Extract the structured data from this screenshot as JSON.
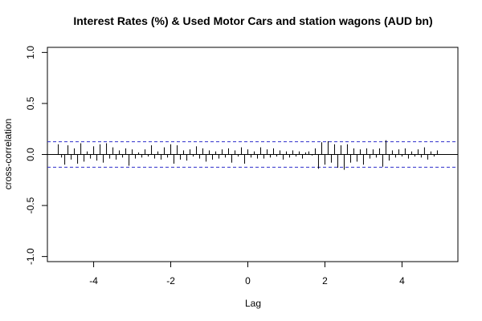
{
  "chart_data": {
    "type": "bar",
    "subtype": "cross-correlation",
    "title": "Interest Rates (%) & Used Motor Cars and station wagons (AUD bn)",
    "xlabel": "Lag",
    "ylabel": "cross-correlation",
    "xlim": [
      -5.2,
      5.45
    ],
    "ylim": [
      -1.05,
      1.05
    ],
    "x_ticks": [
      -4,
      -2,
      0,
      2,
      4
    ],
    "y_ticks": [
      -1.0,
      -0.5,
      0.0,
      0.5,
      1.0
    ],
    "x_tick_labels": [
      "-4",
      "-2",
      "0",
      "2",
      "4"
    ],
    "y_tick_labels": [
      "-1.0",
      "-0.5",
      "0.0",
      "0.5",
      "1.0"
    ],
    "confidence_limit": 0.125,
    "colors": {
      "bars": "#000000",
      "confidence_lines": "#2f2fcc",
      "zero_line": "#000000"
    },
    "lags": [
      -4.917,
      -4.833,
      -4.75,
      -4.667,
      -4.583,
      -4.5,
      -4.417,
      -4.333,
      -4.25,
      -4.167,
      -4.083,
      -4.0,
      -3.917,
      -3.833,
      -3.75,
      -3.667,
      -3.583,
      -3.5,
      -3.417,
      -3.333,
      -3.25,
      -3.167,
      -3.083,
      -3.0,
      -2.917,
      -2.833,
      -2.75,
      -2.667,
      -2.583,
      -2.5,
      -2.417,
      -2.333,
      -2.25,
      -2.167,
      -2.083,
      -2.0,
      -1.917,
      -1.833,
      -1.75,
      -1.667,
      -1.583,
      -1.5,
      -1.417,
      -1.333,
      -1.25,
      -1.167,
      -1.083,
      -1.0,
      -0.917,
      -0.833,
      -0.75,
      -0.667,
      -0.583,
      -0.5,
      -0.417,
      -0.333,
      -0.25,
      -0.167,
      -0.083,
      0.0,
      0.083,
      0.167,
      0.25,
      0.333,
      0.417,
      0.5,
      0.583,
      0.667,
      0.75,
      0.833,
      0.917,
      1.0,
      1.083,
      1.167,
      1.25,
      1.333,
      1.417,
      1.5,
      1.583,
      1.667,
      1.75,
      1.833,
      1.917,
      2.0,
      2.083,
      2.167,
      2.25,
      2.333,
      2.417,
      2.5,
      2.583,
      2.667,
      2.75,
      2.833,
      2.917,
      3.0,
      3.083,
      3.167,
      3.25,
      3.333,
      3.417,
      3.5,
      3.583,
      3.667,
      3.75,
      3.833,
      3.917,
      4.0,
      4.083,
      4.167,
      4.25,
      4.333,
      4.417,
      4.5,
      4.583,
      4.667,
      4.75,
      4.833,
      4.917
    ],
    "values": [
      0.1,
      -0.03,
      -0.1,
      0.09,
      -0.05,
      0.06,
      -0.09,
      0.11,
      -0.07,
      0.03,
      -0.04,
      0.08,
      -0.06,
      0.1,
      -0.08,
      0.11,
      -0.04,
      0.07,
      -0.05,
      0.04,
      -0.03,
      0.06,
      -0.11,
      0.05,
      -0.04,
      0.02,
      -0.03,
      0.05,
      -0.02,
      0.09,
      -0.04,
      0.03,
      -0.05,
      0.07,
      -0.03,
      0.1,
      -0.09,
      0.09,
      -0.05,
      0.04,
      -0.06,
      0.05,
      -0.02,
      0.08,
      -0.04,
      0.06,
      -0.07,
      0.04,
      -0.05,
      0.03,
      -0.04,
      0.05,
      -0.03,
      0.06,
      -0.08,
      0.04,
      -0.02,
      0.07,
      -0.09,
      0.05,
      -0.03,
      0.03,
      -0.04,
      0.07,
      -0.04,
      0.05,
      -0.03,
      0.06,
      -0.02,
      0.04,
      -0.05,
      0.03,
      -0.03,
      0.04,
      -0.02,
      0.03,
      -0.04,
      0.02,
      0.03,
      -0.01,
      0.06,
      -0.14,
      0.12,
      -0.1,
      0.13,
      -0.08,
      0.1,
      -0.13,
      0.09,
      -0.15,
      0.1,
      -0.08,
      0.06,
      -0.07,
      0.05,
      -0.1,
      0.06,
      -0.04,
      0.05,
      -0.03,
      0.06,
      -0.12,
      0.14,
      -0.06,
      0.04,
      -0.03,
      0.05,
      -0.02,
      0.06,
      -0.04,
      0.03,
      -0.02,
      0.05,
      -0.03,
      0.07,
      -0.05,
      0.03,
      -0.02,
      0.04
    ]
  }
}
